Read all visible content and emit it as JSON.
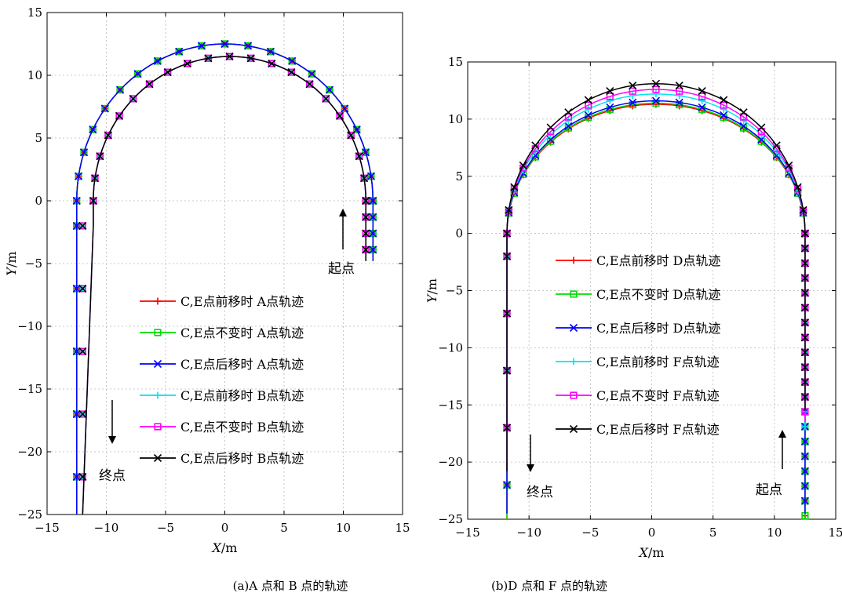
{
  "chart_data": [
    {
      "type": "line",
      "caption_letter": "A",
      "caption_letter2": "B",
      "caption": "(a)A 点和 B 点的轨迹",
      "xlabel_var": "X",
      "xlabel_unit": "/m",
      "ylabel_var": "Y",
      "ylabel_unit": "/m",
      "xlim": [
        -15,
        15
      ],
      "ylim": [
        -25,
        15
      ],
      "xticks": [
        -15,
        -10,
        -5,
        0,
        5,
        10,
        15
      ],
      "yticks": [
        -25,
        -20,
        -15,
        -10,
        -5,
        0,
        5,
        10,
        15
      ],
      "xtick_labels": [
        "−15",
        "−10",
        "−5",
        "0",
        "5",
        "10",
        "15"
      ],
      "ytick_labels": [
        "−25",
        "−20",
        "−15",
        "−10",
        "−5",
        "0",
        "5",
        "10",
        "15"
      ],
      "grid": true,
      "legend_position": "bottom-right",
      "annotations": {
        "start": "起点",
        "end": "终点"
      },
      "series": [
        {
          "name": "C,E点前移时 A点轨迹",
          "color": "#ff0000",
          "marker": "plus",
          "cx": 0,
          "R": 12.5,
          "start_y": -4.8,
          "end_y": -25.0,
          "straight_x": -12.5
        },
        {
          "name": "C,E点不变时 A点轨迹",
          "color": "#00dd00",
          "marker": "square",
          "cx": 0,
          "R": 12.5,
          "start_y": -4.8,
          "end_y": -25.0,
          "straight_x": -12.5
        },
        {
          "name": "C,E点后移时 A点轨迹",
          "color": "#0000ff",
          "marker": "x",
          "cx": 0,
          "R": 12.5,
          "start_y": -4.8,
          "end_y": -25.0,
          "straight_x": -12.5
        },
        {
          "name": "C,E点前移时 B点轨迹",
          "color": "#00e5ee",
          "marker": "plus",
          "cx": 0.4,
          "R": 11.5,
          "start_y": -4.8,
          "end_y": -25.0,
          "straight_x": -12.0
        },
        {
          "name": "C,E点不变时 B点轨迹",
          "color": "#ff00ff",
          "marker": "square",
          "cx": 0.4,
          "R": 11.5,
          "start_y": -4.8,
          "end_y": -25.0,
          "straight_x": -12.0
        },
        {
          "name": "C,E点后移时 B点轨迹",
          "color": "#000000",
          "marker": "x",
          "cx": 0.4,
          "R": 11.5,
          "start_y": -4.8,
          "end_y": -25.0,
          "straight_x": -12.0
        }
      ]
    },
    {
      "type": "line",
      "caption": "(b)D 点和 F 点的轨迹",
      "xlabel_var": "X",
      "xlabel_unit": "/m",
      "ylabel_var": "Y",
      "ylabel_unit": "/m",
      "xlim": [
        -15,
        15
      ],
      "ylim": [
        -25,
        15
      ],
      "xticks": [
        -15,
        -10,
        -5,
        0,
        5,
        10,
        15
      ],
      "yticks": [
        -25,
        -20,
        -15,
        -10,
        -5,
        0,
        5,
        10,
        15
      ],
      "xtick_labels": [
        "−15",
        "−10",
        "−5",
        "0",
        "5",
        "10",
        "15"
      ],
      "ytick_labels": [
        "−25",
        "−20",
        "−15",
        "−10",
        "−5",
        "0",
        "5",
        "10",
        "15"
      ],
      "grid": true,
      "legend_position": "center",
      "annotations": {
        "start": "起点",
        "end": "终点"
      },
      "series": [
        {
          "name": "C,E点前移时 D点轨迹",
          "color": "#ff0000",
          "marker": "plus",
          "cx": 0,
          "R": 11.3,
          "start_y": -25.0,
          "end_y": -25.0,
          "straight_x": -11.8,
          "right_x": 12.5
        },
        {
          "name": "C,E点不变时 D点轨迹",
          "color": "#00dd00",
          "marker": "square",
          "cx": 0,
          "R": 11.4,
          "start_y": -25.0,
          "end_y": -25.0,
          "straight_x": -11.8,
          "right_x": 12.5
        },
        {
          "name": "C,E点后移时 D点轨迹",
          "color": "#0000ff",
          "marker": "x",
          "cx": 0,
          "R": 11.6,
          "start_y": -24.5,
          "end_y": -24.5,
          "straight_x": -11.8,
          "right_x": 12.5
        },
        {
          "name": "C,E点前移时 F点轨迹",
          "color": "#00e5ee",
          "marker": "plus",
          "cx": 0,
          "R": 12.2,
          "start_y": -20.0,
          "end_y": -17.0,
          "straight_x": -11.8,
          "right_x": 12.5
        },
        {
          "name": "C,E点不变时 F点轨迹",
          "color": "#ff00ff",
          "marker": "square",
          "cx": 0,
          "R": 12.6,
          "start_y": -20.5,
          "end_y": -16.5,
          "straight_x": -11.8,
          "right_x": 12.5
        },
        {
          "name": "C,E点后移时 F点轨迹",
          "color": "#000000",
          "marker": "x",
          "cx": 0,
          "R": 13.1,
          "start_y": -20.8,
          "end_y": -15.5,
          "straight_x": -11.8,
          "right_x": 12.5
        }
      ]
    }
  ]
}
